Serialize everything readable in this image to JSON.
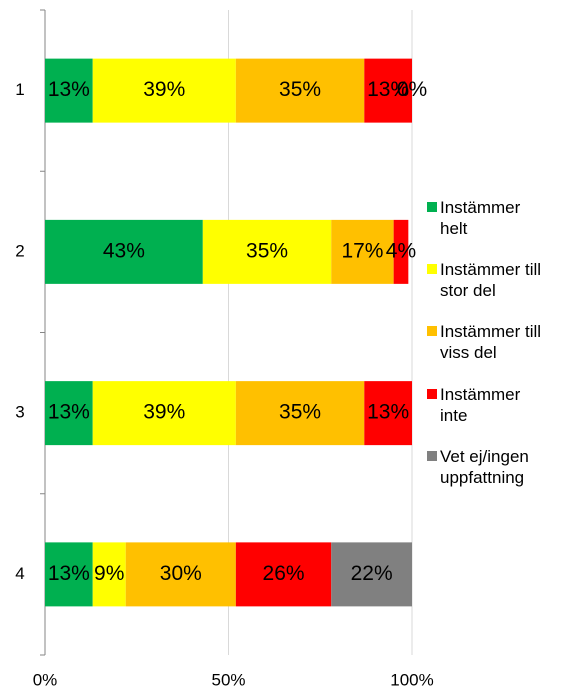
{
  "chart_data": {
    "type": "stacked_bar_horizontal",
    "categories": [
      "1",
      "2",
      "3",
      "4"
    ],
    "series": [
      {
        "name": "Instämmer helt",
        "color": "#00b050",
        "values": [
          13,
          43,
          13,
          13
        ],
        "value_labels": [
          "13%",
          "43%",
          "13%",
          "13%"
        ]
      },
      {
        "name": "Instämmer till stor del",
        "color": "#ffff00",
        "values": [
          39,
          35,
          39,
          9
        ],
        "value_labels": [
          "39%",
          "35%",
          "39%",
          "9%"
        ]
      },
      {
        "name": "Instämmer till viss del",
        "color": "#ffc000",
        "values": [
          35,
          17,
          35,
          30
        ],
        "value_labels": [
          "35%",
          "17%",
          "35%",
          "30%"
        ]
      },
      {
        "name": "Instämmer inte",
        "color": "#ff0000",
        "values": [
          13,
          4,
          13,
          26
        ],
        "value_labels": [
          "13%",
          "4%",
          "13%",
          "26%"
        ]
      },
      {
        "name": "Vet ej/ingen uppfattning",
        "color": "#808080",
        "values": [
          0,
          null,
          null,
          22
        ],
        "value_labels": [
          "0%",
          null,
          null,
          "22%"
        ]
      }
    ],
    "xlim": [
      0,
      100
    ],
    "xticks": [
      {
        "value": 0,
        "label": "0%"
      },
      {
        "value": 50,
        "label": "50%"
      },
      {
        "value": 100,
        "label": "100%"
      }
    ],
    "grid": true,
    "legend": "right"
  }
}
